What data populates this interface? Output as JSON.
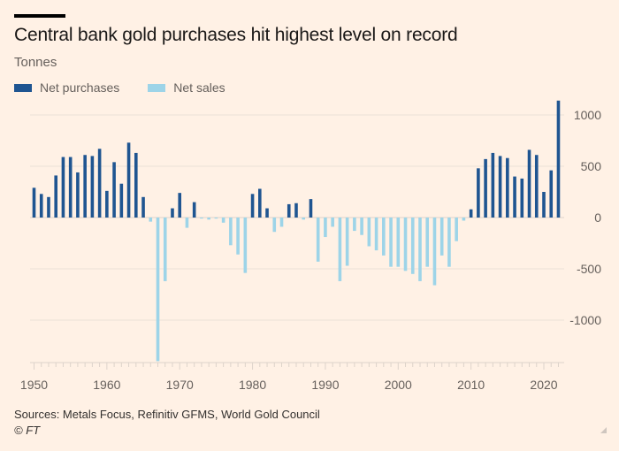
{
  "header": {
    "title": "Central bank gold purchases hit highest level on record",
    "subtitle": "Tonnes"
  },
  "legend": [
    {
      "label": "Net purchases",
      "color": "#1f5591"
    },
    {
      "label": "Net sales",
      "color": "#9dd4e8"
    }
  ],
  "footer": {
    "source": "Sources: Metals Focus, Refinitiv GFMS, World Gold Council",
    "copyright": "© FT"
  },
  "chart_data": {
    "type": "bar",
    "title": "Central bank gold purchases hit highest level on record",
    "ylabel": "Tonnes",
    "xlabel": "",
    "ylim": [
      -1400,
      1150
    ],
    "xlim": [
      1950,
      2022
    ],
    "grid": true,
    "legend_position": "top-left",
    "y_axis_position": "right",
    "yticks": [
      1000,
      500,
      0,
      -500,
      -1000
    ],
    "ytick_labels": [
      "1000",
      "500",
      "0",
      "-500",
      "-1000"
    ],
    "xticks": [
      1950,
      1960,
      1970,
      1980,
      1990,
      2000,
      2010,
      2020
    ],
    "xtick_labels": [
      "1950",
      "1960",
      "1970",
      "1980",
      "1990",
      "2000",
      "2010",
      "2020"
    ],
    "series": [
      {
        "name": "Net purchases",
        "color": "#1f5591",
        "rule": "value >= 0"
      },
      {
        "name": "Net sales",
        "color": "#9dd4e8",
        "rule": "value < 0"
      }
    ],
    "x": [
      1950,
      1951,
      1952,
      1953,
      1954,
      1955,
      1956,
      1957,
      1958,
      1959,
      1960,
      1961,
      1962,
      1963,
      1964,
      1965,
      1966,
      1967,
      1968,
      1969,
      1970,
      1971,
      1972,
      1973,
      1974,
      1975,
      1976,
      1977,
      1978,
      1979,
      1980,
      1981,
      1982,
      1983,
      1984,
      1985,
      1986,
      1987,
      1988,
      1989,
      1990,
      1991,
      1992,
      1993,
      1994,
      1995,
      1996,
      1997,
      1998,
      1999,
      2000,
      2001,
      2002,
      2003,
      2004,
      2005,
      2006,
      2007,
      2008,
      2009,
      2010,
      2011,
      2012,
      2013,
      2014,
      2015,
      2016,
      2017,
      2018,
      2019,
      2020,
      2021,
      2022
    ],
    "values": [
      290,
      230,
      200,
      410,
      590,
      590,
      440,
      610,
      600,
      670,
      260,
      540,
      330,
      730,
      630,
      200,
      -40,
      -1400,
      -620,
      90,
      240,
      -100,
      150,
      -10,
      -20,
      -10,
      -50,
      -270,
      -360,
      -540,
      230,
      280,
      90,
      -140,
      -90,
      130,
      140,
      -20,
      180,
      -430,
      -190,
      -90,
      -620,
      -470,
      -130,
      -170,
      -280,
      -320,
      -370,
      -480,
      -480,
      -520,
      -550,
      -620,
      -480,
      -660,
      -370,
      -480,
      -230,
      -30,
      80,
      480,
      570,
      630,
      600,
      580,
      400,
      380,
      660,
      610,
      250,
      460,
      1140
    ]
  }
}
